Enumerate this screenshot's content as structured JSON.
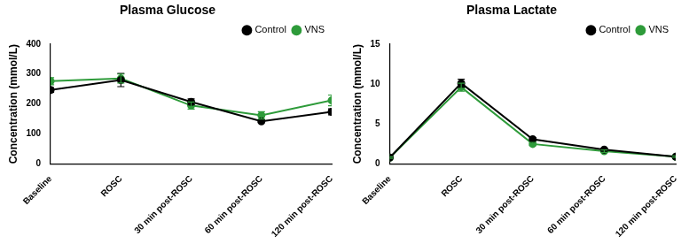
{
  "chart_data": [
    {
      "type": "line",
      "title": "Plasma Glucose",
      "y_label": "Concentration (mmol/L)",
      "categories": [
        "Baseline",
        "ROSC",
        "30 min post-ROSC",
        "60 min post-ROSC",
        "120 min post-ROSC"
      ],
      "series": [
        {
          "name": "Control",
          "color": "#000000",
          "marker": "circle",
          "values": [
            247,
            280,
            207,
            142,
            174
          ],
          "errors": [
            8,
            22,
            10,
            4,
            10
          ]
        },
        {
          "name": "VNS",
          "color": "#2e9b3a",
          "marker": "circle",
          "values": [
            276,
            285,
            195,
            162,
            212
          ],
          "errors": [
            12,
            15,
            12,
            12,
            18
          ]
        }
      ],
      "ylim": [
        0,
        400
      ],
      "yticks": [
        0,
        100,
        200,
        300,
        400
      ],
      "grid": false,
      "legend": "upper right"
    },
    {
      "type": "line",
      "title": "Plasma Lactate",
      "y_label": "Concentration (mmol/L)",
      "categories": [
        "Baseline",
        "ROSC",
        "30 min post-ROSC",
        "60 min post-ROSC",
        "120 min post-ROSC"
      ],
      "series": [
        {
          "name": "Control",
          "color": "#000000",
          "marker": "circle",
          "values": [
            0.8,
            10.1,
            3.1,
            1.8,
            0.9
          ],
          "errors": [
            0.1,
            0.5,
            0.2,
            0.15,
            0.1
          ]
        },
        {
          "name": "VNS",
          "color": "#2e9b3a",
          "marker": "circle",
          "values": [
            0.8,
            9.6,
            2.5,
            1.6,
            0.9
          ],
          "errors": [
            0.1,
            0.5,
            0.2,
            0.15,
            0.1
          ]
        }
      ],
      "ylim": [
        0,
        15
      ],
      "yticks": [
        0,
        5,
        10,
        15
      ],
      "grid": false,
      "legend": "upper right"
    }
  ]
}
